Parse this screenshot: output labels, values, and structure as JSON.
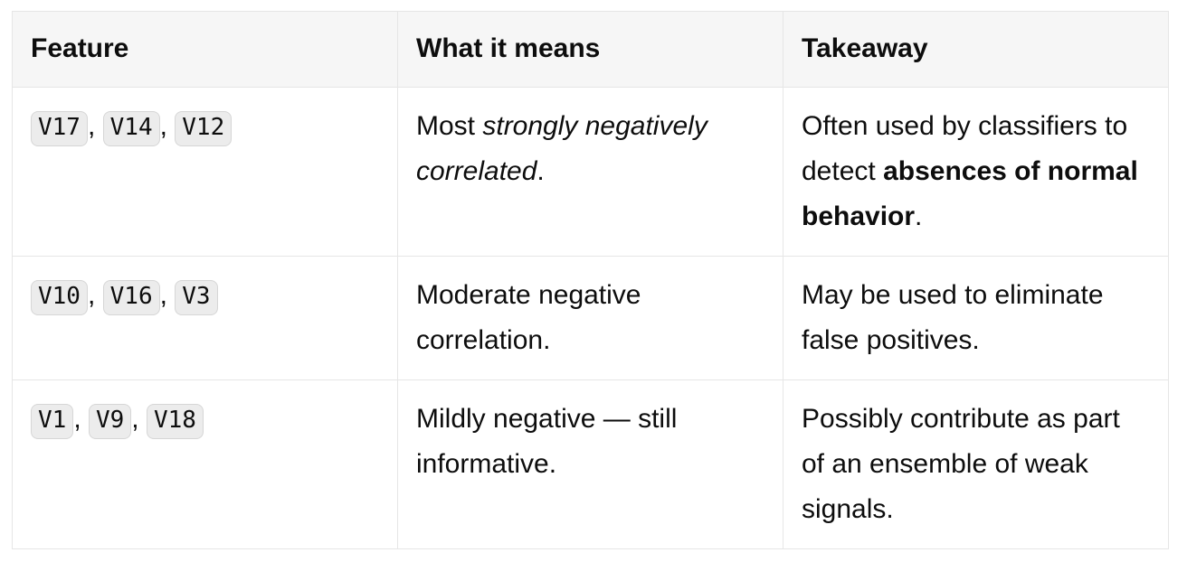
{
  "colors": {
    "text": "#0d0d0d",
    "header_background": "#f6f6f6",
    "table_border": "#e6e6e6",
    "badge_background": "#ececec",
    "badge_border": "#d6d6d6",
    "page_background": "#ffffff"
  },
  "table": {
    "feature_separator": ", ",
    "columns": [
      {
        "id": "feature",
        "label": "Feature"
      },
      {
        "id": "meaning",
        "label": "What it means"
      },
      {
        "id": "takeaway",
        "label": "Takeaway"
      }
    ],
    "rows": [
      {
        "features": [
          "V17",
          "V14",
          "V12"
        ],
        "meaning": [
          {
            "text": "Most ",
            "style": "normal"
          },
          {
            "text": "strongly negatively correlated",
            "style": "italic"
          },
          {
            "text": ".",
            "style": "normal"
          }
        ],
        "takeaway": [
          {
            "text": "Often used by classifiers to detect ",
            "style": "normal"
          },
          {
            "text": "absences of normal behavior",
            "style": "bold"
          },
          {
            "text": ".",
            "style": "normal"
          }
        ]
      },
      {
        "features": [
          "V10",
          "V16",
          "V3"
        ],
        "meaning": [
          {
            "text": "Moderate negative correlation.",
            "style": "normal"
          }
        ],
        "takeaway": [
          {
            "text": "May be used to eliminate false positives.",
            "style": "normal"
          }
        ]
      },
      {
        "features": [
          "V1",
          "V9",
          "V18"
        ],
        "meaning": [
          {
            "text": "Mildly negative — still informative.",
            "style": "normal"
          }
        ],
        "takeaway": [
          {
            "text": "Possibly contribute as part of an ensemble of weak signals.",
            "style": "normal"
          }
        ]
      }
    ]
  }
}
